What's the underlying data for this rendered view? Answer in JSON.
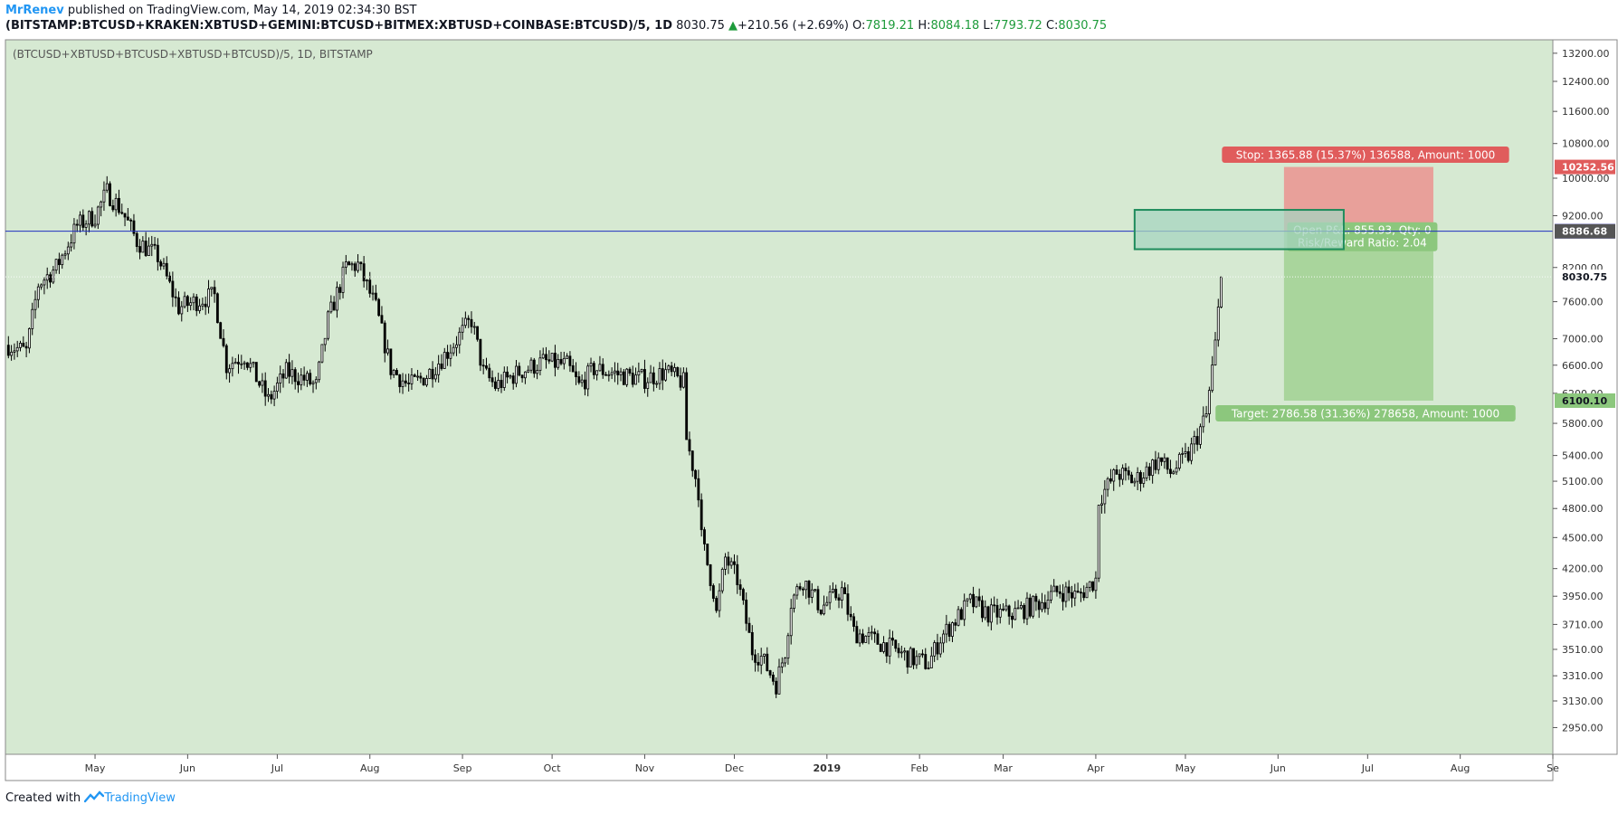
{
  "header": {
    "author": "MrRenev",
    "published_text": " published on TradingView.com, May 14, 2019 02:34:30 BST",
    "symbol": "(BITSTAMP:BTCUSD+KRAKEN:XBTUSD+GEMINI:BTCUSD+BITMEX:XBTUSD+COINBASE:BTCUSD)/5, 1D",
    "last_price": "8030.75",
    "change": "+210.56 (+2.69%)",
    "o_label": "O:",
    "o_value": "7819.21",
    "h_label": "H:",
    "h_value": "8084.18",
    "l_label": "L:",
    "l_value": "7793.72",
    "c_label": "C:",
    "c_value": "8030.75"
  },
  "footer": {
    "created_with": "Created with",
    "brand": "TradingView"
  },
  "chart_data": {
    "type": "candlestick",
    "title": "(BTCUSD+XBTUSD+BTCUSD+XBTUSD+BTCUSD)/5, 1D, BITSTAMP",
    "y_scale": "log",
    "ylim": [
      2780,
      13600
    ],
    "y_ticks": [
      "13200.00",
      "12400.00",
      "11600.00",
      "10800.00",
      "10000.00",
      "9200.00",
      "8200.00",
      "7600.00",
      "7000.00",
      "6600.00",
      "6200.00",
      "5800.00",
      "5400.00",
      "5100.00",
      "4800.00",
      "4500.00",
      "4200.00",
      "3950.00",
      "3710.00",
      "3510.00",
      "3310.00",
      "3130.00",
      "2950.00"
    ],
    "x_ticks": [
      {
        "label": "May",
        "date": "2018-05-01"
      },
      {
        "label": "Jun",
        "date": "2018-06-01"
      },
      {
        "label": "Jul",
        "date": "2018-07-01"
      },
      {
        "label": "Aug",
        "date": "2018-08-01"
      },
      {
        "label": "Sep",
        "date": "2018-09-01"
      },
      {
        "label": "Oct",
        "date": "2018-10-01"
      },
      {
        "label": "Nov",
        "date": "2018-11-01"
      },
      {
        "label": "Dec",
        "date": "2018-12-01"
      },
      {
        "label": "2019",
        "date": "2019-01-01",
        "bold": true
      },
      {
        "label": "Feb",
        "date": "2019-02-01"
      },
      {
        "label": "Mar",
        "date": "2019-03-01"
      },
      {
        "label": "Apr",
        "date": "2019-04-01"
      },
      {
        "label": "May",
        "date": "2019-05-01"
      },
      {
        "label": "Jun",
        "date": "2019-06-01"
      },
      {
        "label": "Jul",
        "date": "2019-07-01"
      },
      {
        "label": "Aug",
        "date": "2019-08-01"
      },
      {
        "label": "Se",
        "date": "2019-09-01"
      }
    ],
    "close_points": [
      [
        "2018-04-02",
        6900
      ],
      [
        "2018-04-08",
        6800
      ],
      [
        "2018-04-12",
        7900
      ],
      [
        "2018-04-18",
        8200
      ],
      [
        "2018-04-25",
        9000
      ],
      [
        "2018-05-01",
        9200
      ],
      [
        "2018-05-05",
        9700
      ],
      [
        "2018-05-10",
        9300
      ],
      [
        "2018-05-15",
        8700
      ],
      [
        "2018-05-22",
        8400
      ],
      [
        "2018-05-29",
        7500
      ],
      [
        "2018-06-06",
        7650
      ],
      [
        "2018-06-10",
        7700
      ],
      [
        "2018-06-14",
        6600
      ],
      [
        "2018-06-20",
        6750
      ],
      [
        "2018-06-28",
        6100
      ],
      [
        "2018-07-04",
        6500
      ],
      [
        "2018-07-10",
        6400
      ],
      [
        "2018-07-14",
        6300
      ],
      [
        "2018-07-18",
        7300
      ],
      [
        "2018-07-24",
        8200
      ],
      [
        "2018-07-28",
        8250
      ],
      [
        "2018-08-03",
        7500
      ],
      [
        "2018-08-08",
        6550
      ],
      [
        "2018-08-14",
        6300
      ],
      [
        "2018-08-20",
        6450
      ],
      [
        "2018-08-27",
        6800
      ],
      [
        "2018-09-04",
        7300
      ],
      [
        "2018-09-08",
        6500
      ],
      [
        "2018-09-12",
        6300
      ],
      [
        "2018-09-20",
        6500
      ],
      [
        "2018-09-28",
        6650
      ],
      [
        "2018-10-06",
        6600
      ],
      [
        "2018-10-10",
        6300
      ],
      [
        "2018-10-15",
        6550
      ],
      [
        "2018-10-25",
        6450
      ],
      [
        "2018-11-01",
        6400
      ],
      [
        "2018-11-08",
        6500
      ],
      [
        "2018-11-14",
        6350
      ],
      [
        "2018-11-15",
        5600
      ],
      [
        "2018-11-19",
        5000
      ],
      [
        "2018-11-20",
        4500
      ],
      [
        "2018-11-24",
        4000
      ],
      [
        "2018-11-25",
        3800
      ],
      [
        "2018-11-28",
        4300
      ],
      [
        "2018-12-02",
        4100
      ],
      [
        "2018-12-07",
        3500
      ],
      [
        "2018-12-10",
        3450
      ],
      [
        "2018-12-15",
        3250
      ],
      [
        "2018-12-18",
        3500
      ],
      [
        "2018-12-20",
        3900
      ],
      [
        "2018-12-24",
        4100
      ],
      [
        "2018-12-30",
        3850
      ],
      [
        "2019-01-06",
        4000
      ],
      [
        "2019-01-10",
        3650
      ],
      [
        "2019-01-20",
        3550
      ],
      [
        "2019-01-28",
        3450
      ],
      [
        "2019-02-04",
        3400
      ],
      [
        "2019-02-08",
        3600
      ],
      [
        "2019-02-18",
        3900
      ],
      [
        "2019-02-24",
        3800
      ],
      [
        "2019-03-04",
        3800
      ],
      [
        "2019-03-12",
        3880
      ],
      [
        "2019-03-20",
        4000
      ],
      [
        "2019-03-26",
        3950
      ],
      [
        "2019-04-01",
        4100
      ],
      [
        "2019-04-02",
        4900
      ],
      [
        "2019-04-08",
        5200
      ],
      [
        "2019-04-14",
        5100
      ],
      [
        "2019-04-22",
        5350
      ],
      [
        "2019-04-26",
        5200
      ],
      [
        "2019-05-02",
        5400
      ],
      [
        "2019-05-08",
        5900
      ],
      [
        "2019-05-11",
        6900
      ],
      [
        "2019-05-13",
        8030
      ]
    ],
    "horizontal_line": {
      "price": 8888.0,
      "color": "#1f2fbf",
      "label": "8888.00"
    },
    "last_price_marker": {
      "price": 8030.75,
      "label": "8030.75"
    },
    "entry_box": {
      "from": "2019-04-14",
      "to": "2019-06-23",
      "top": 9320,
      "bottom": 8540
    },
    "position": {
      "entry": 8886.68,
      "entry_label": "8886.68",
      "stop": 10252.56,
      "stop_label": "10252.56",
      "target": 6100.1,
      "target_label": "6100.10",
      "from": "2019-06-03",
      "to": "2019-07-23",
      "stop_text": "Stop: 1365.88 (15.37%) 136588, Amount: 1000",
      "target_text": "Target: 2786.58 (31.36%) 278658, Amount: 1000",
      "pnl_text": "Open P&L: 855.93, Qty: 0",
      "rr_text": "Risk/Reward Ratio: 2.04"
    },
    "colors": {
      "background": "#d6e9d2",
      "candle": "#000000",
      "stop_fill": "#e8a09a",
      "target_fill": "#a9d59c",
      "stop_label_bg": "#e05c5c",
      "target_label_bg": "#8cc77d",
      "line": "#1f2fbf",
      "entry_box_stroke": "#1e8c5c",
      "entry_box_fill": "#a7d4c0"
    }
  }
}
